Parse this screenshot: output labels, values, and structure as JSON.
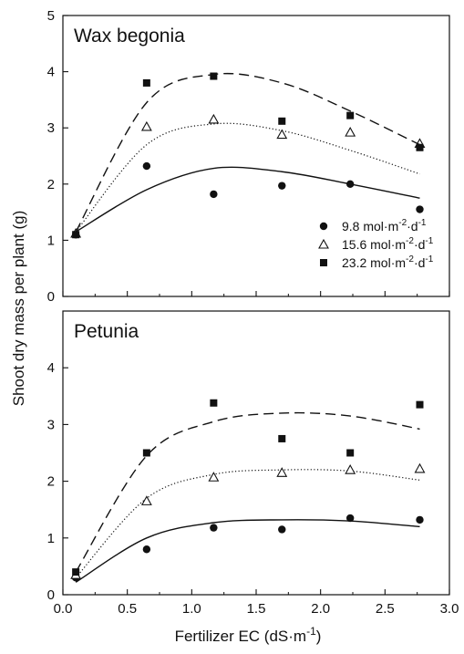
{
  "chart_data": {
    "type": "scatter",
    "layout": "two vertically stacked panels sharing x axis",
    "xlabel_parts": {
      "main": "Fertilizer EC (dS·m",
      "sup": "-1",
      "close": ")"
    },
    "ylabel": "Shoot dry mass per plant (g)",
    "x": [
      0.1,
      0.65,
      1.17,
      1.7,
      2.23,
      2.77
    ],
    "xlim": [
      0,
      3.0
    ],
    "x_ticks": [
      "0.0",
      "0.5",
      "1.0",
      "1.5",
      "2.0",
      "2.5",
      "3.0"
    ],
    "ylim": [
      0,
      5
    ],
    "y_ticks_top": [
      "0",
      "1",
      "2",
      "3",
      "4",
      "5"
    ],
    "y_ticks_bottom": [
      "0",
      "1",
      "2",
      "3",
      "4"
    ],
    "legend": [
      {
        "marker": "filled-circle",
        "line": "solid",
        "value": "9.8",
        "unit": "mol·m",
        "exp1": "-2",
        "mid": "·d",
        "exp2": "-1"
      },
      {
        "marker": "open-triangle",
        "line": "dotted",
        "value": "15.6",
        "unit": "mol·m",
        "exp1": "-2",
        "mid": "·d",
        "exp2": "-1"
      },
      {
        "marker": "filled-square",
        "line": "dashed",
        "value": "23.2",
        "unit": "mol·m",
        "exp1": "-2",
        "mid": "·d",
        "exp2": "-1"
      }
    ],
    "legend_placement": "lower-right of top panel",
    "panels": [
      {
        "title": "Wax begonia",
        "series": [
          {
            "marker": "filled-circle",
            "line": "solid",
            "points": [
              1.1,
              2.32,
              1.82,
              1.97,
              2.0,
              1.55
            ],
            "fit": [
              1.15,
              1.9,
              2.28,
              2.22,
              2.0,
              1.75
            ]
          },
          {
            "marker": "open-triangle",
            "line": "dotted",
            "points": [
              1.12,
              3.02,
              3.15,
              2.88,
              2.92,
              2.72
            ],
            "fit": [
              1.15,
              2.7,
              3.07,
              2.95,
              2.6,
              2.18
            ]
          },
          {
            "marker": "filled-square",
            "line": "dashed",
            "points": [
              1.1,
              3.8,
              3.92,
              3.12,
              3.22,
              2.65
            ],
            "fit": [
              1.15,
              3.45,
              3.95,
              3.8,
              3.3,
              2.7
            ]
          }
        ]
      },
      {
        "title": "Petunia",
        "series": [
          {
            "marker": "filled-circle",
            "line": "solid",
            "points": [
              0.3,
              0.8,
              1.18,
              1.15,
              1.35,
              1.32
            ],
            "fit": [
              0.22,
              1.0,
              1.27,
              1.32,
              1.3,
              1.2
            ]
          },
          {
            "marker": "open-triangle",
            "line": "dotted",
            "points": [
              0.35,
              1.65,
              2.07,
              2.15,
              2.2,
              2.22
            ],
            "fit": [
              0.3,
              1.7,
              2.12,
              2.2,
              2.18,
              2.02
            ]
          },
          {
            "marker": "filled-square",
            "line": "dashed",
            "points": [
              0.4,
              2.5,
              3.38,
              2.75,
              2.5,
              3.35
            ],
            "fit": [
              0.4,
              2.45,
              3.05,
              3.2,
              3.15,
              2.92
            ]
          }
        ]
      }
    ]
  }
}
